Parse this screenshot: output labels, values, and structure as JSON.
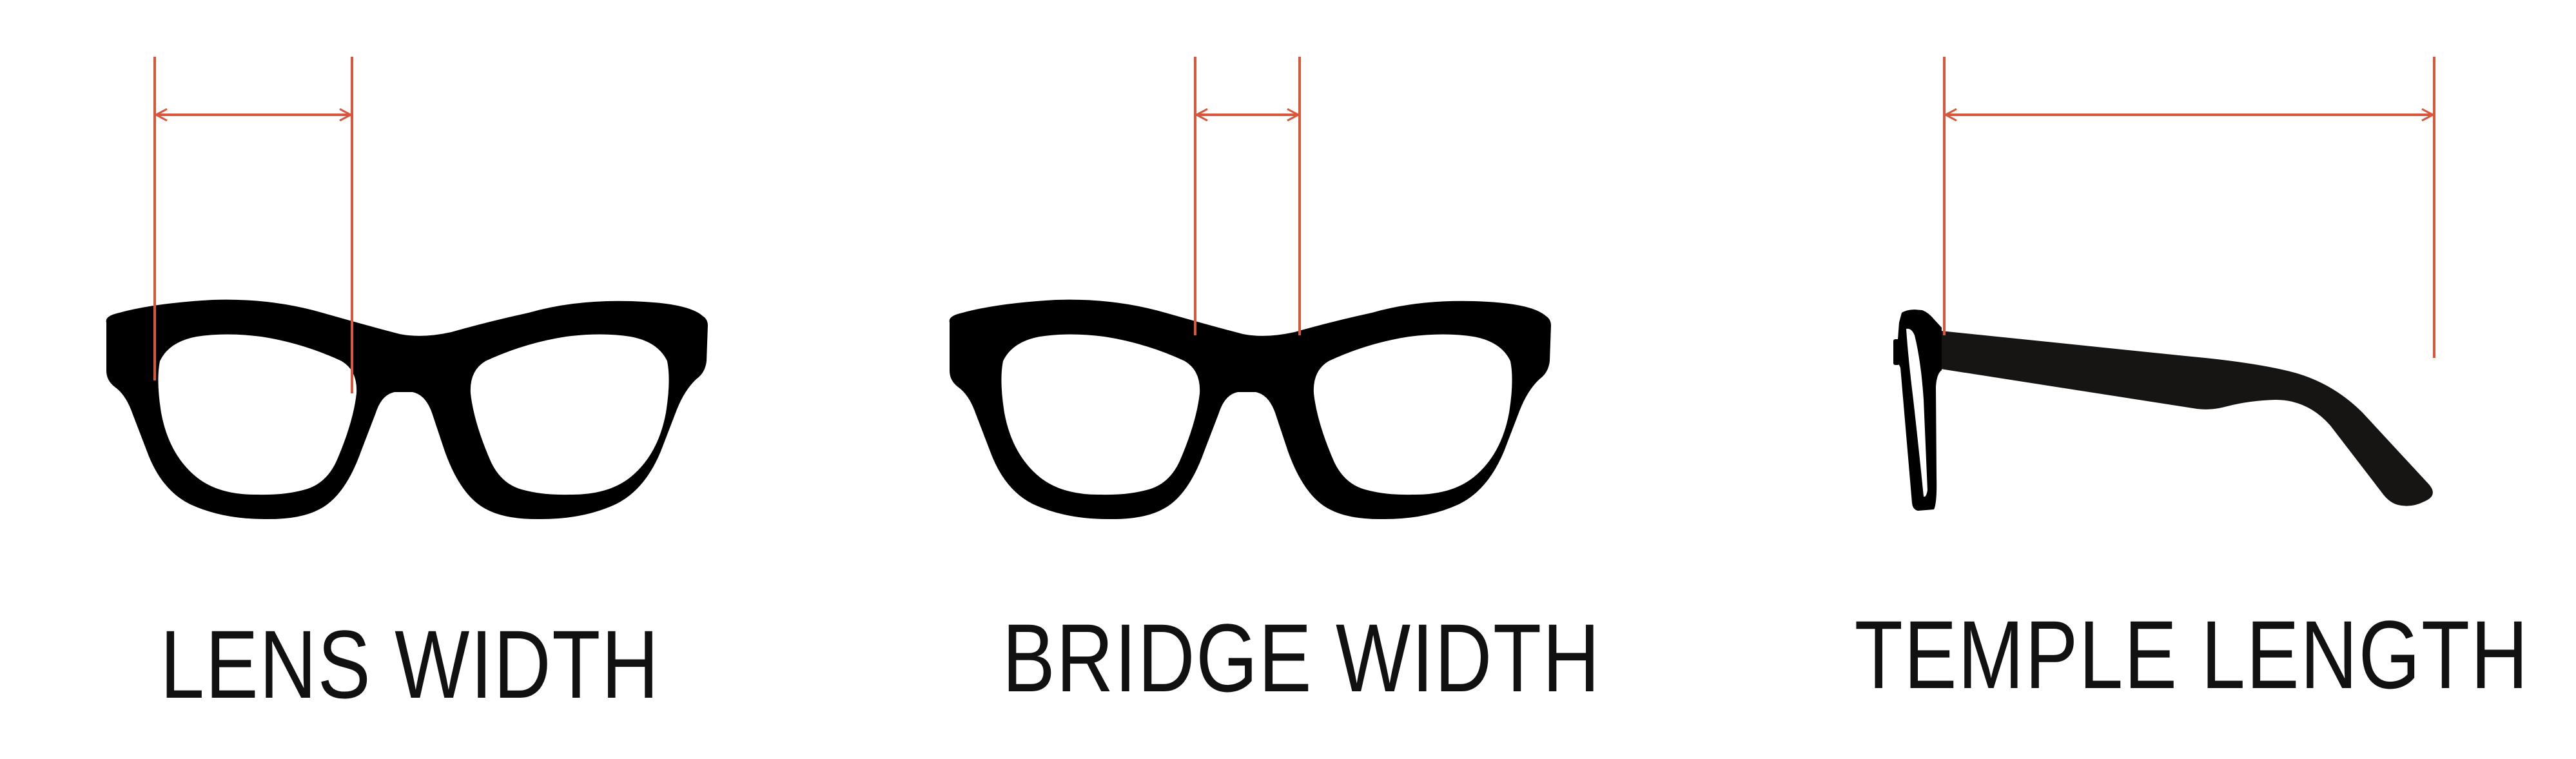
{
  "diagrams": [
    {
      "id": "lens",
      "label": "LENS WIDTH"
    },
    {
      "id": "bridge",
      "label": "BRIDGE WIDTH"
    },
    {
      "id": "temple",
      "label": "TEMPLE LENGTH"
    }
  ],
  "colors": {
    "measure_line": "#d9553c",
    "frame": "#000000",
    "temple_arm": "#161513",
    "text": "#111111",
    "background": "#ffffff"
  }
}
